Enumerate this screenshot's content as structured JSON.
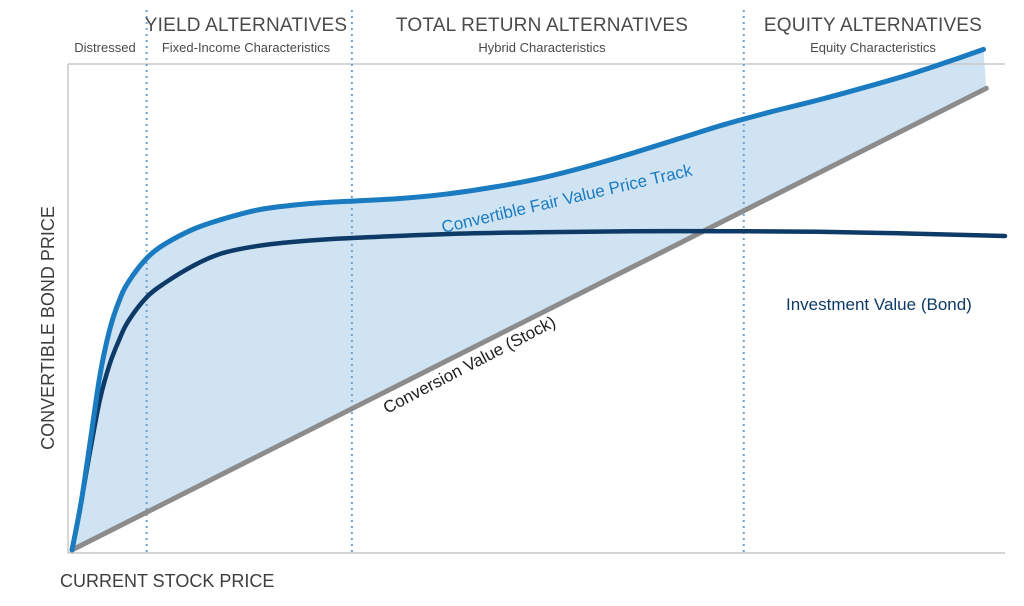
{
  "chart_data": {
    "type": "line",
    "title": "",
    "xlabel": "CURRENT STOCK PRICE",
    "ylabel": "CONVERTIBLE BOND PRICE",
    "xlim": [
      0,
      100
    ],
    "ylim": [
      0,
      100
    ],
    "regions": [
      {
        "title": "",
        "subtitle": "Distressed",
        "x_start": 0,
        "x_end": 8
      },
      {
        "title": "YIELD ALTERNATIVES",
        "subtitle": "Fixed-Income Characteristics",
        "x_start": 8,
        "x_end": 30
      },
      {
        "title": "TOTAL RETURN ALTERNATIVES",
        "subtitle": "Hybrid Characteristics",
        "x_start": 30,
        "x_end": 72
      },
      {
        "title": "EQUITY ALTERNATIVES",
        "subtitle": "Equity Characteristics",
        "x_start": 72,
        "x_end": 100
      }
    ],
    "series": [
      {
        "name": "Convertible Fair Value Price Track",
        "color": "#1a7bc1",
        "x": [
          0,
          1,
          2,
          3,
          4,
          5,
          6,
          8,
          10,
          13,
          16,
          20,
          25,
          30,
          35,
          40,
          45,
          50,
          55,
          60,
          65,
          70,
          75,
          80,
          85,
          90,
          95,
          97.7
        ],
        "y": [
          0,
          10,
          23,
          36,
          45,
          51,
          55,
          60,
          63,
          66,
          68,
          70,
          71.2,
          71.8,
          72.3,
          73.2,
          74.6,
          76.4,
          78.8,
          81.6,
          84.6,
          87.6,
          90.2,
          92.6,
          95.2,
          98.0,
          101.2,
          103
        ]
      },
      {
        "name": "Investment Value (Bond)",
        "color": "#0d3a66",
        "x": [
          0,
          1,
          2,
          3,
          4,
          5,
          6,
          8,
          10,
          13,
          16,
          20,
          25,
          30,
          40,
          50,
          60,
          70,
          80,
          90,
          100
        ],
        "y": [
          0,
          10,
          21,
          31,
          38,
          43,
          47,
          52,
          55,
          58.5,
          61,
          62.6,
          63.6,
          64.2,
          65.0,
          65.4,
          65.6,
          65.6,
          65.5,
          65.1,
          64.6
        ]
      },
      {
        "name": "Conversion Value (Stock)",
        "color": "#8c8c8c",
        "x": [
          0,
          98
        ],
        "y": [
          0,
          95
        ]
      }
    ]
  },
  "colors": {
    "fill": "#cfe3f3",
    "fair_value": "#1a7bc1",
    "investment": "#0d3a66",
    "conversion": "#8c8c8c",
    "divider": "#6fa3cf",
    "axis": "#c8c8c8"
  }
}
